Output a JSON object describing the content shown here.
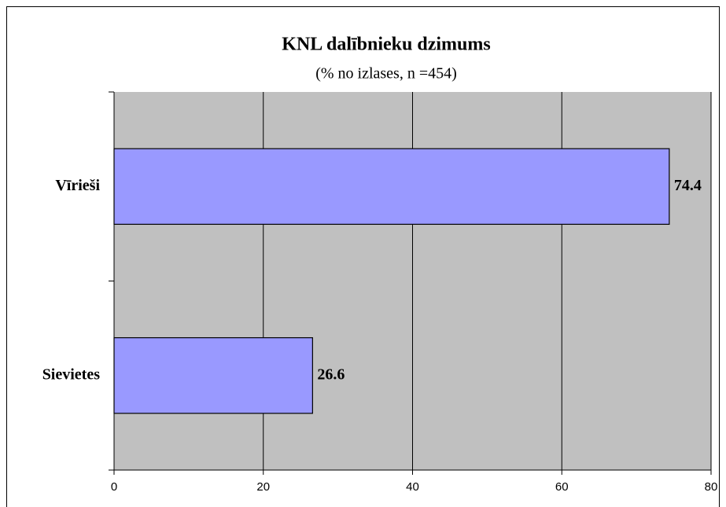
{
  "chart_data": {
    "type": "hbar",
    "title": "KNL dalībnieku dzimums",
    "subtitle": "(% no izlases, n =454)",
    "categories": [
      "Vīrieši",
      "Sievietes"
    ],
    "values": [
      74.4,
      26.6
    ],
    "color": "#9999ff",
    "xlim": [
      0,
      80
    ],
    "xticks": [
      0,
      20,
      40,
      60,
      80
    ],
    "grid": true
  }
}
